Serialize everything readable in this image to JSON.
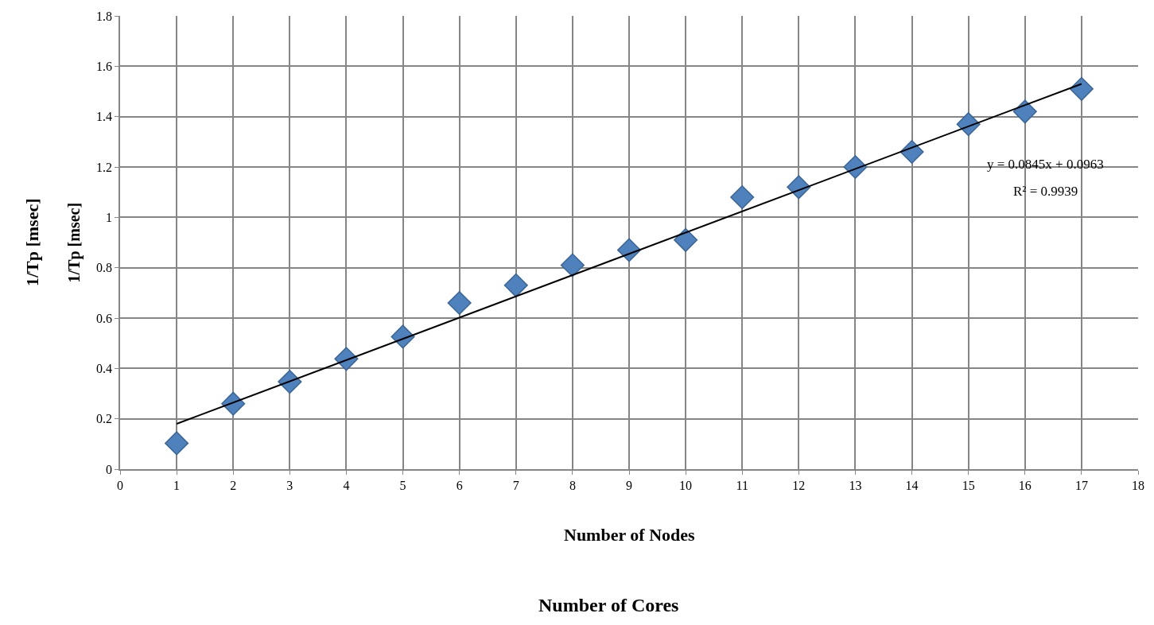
{
  "chart_data": {
    "type": "scatter",
    "xlabel": "Number of Nodes",
    "ylabel": "1/Tp [msec]",
    "x": [
      1,
      2,
      3,
      4,
      5,
      6,
      7,
      8,
      9,
      10,
      11,
      12,
      13,
      14,
      15,
      16,
      17
    ],
    "series": [
      {
        "color": "#4f81bd",
        "marker": "diamond",
        "values": [
          0.103,
          0.26,
          0.347,
          0.438,
          0.526,
          0.66,
          0.73,
          0.81,
          0.87,
          0.91,
          1.08,
          1.12,
          1.2,
          1.26,
          1.37,
          1.42,
          1.51
        ]
      },
      {
        "type": "line",
        "color": "#000000",
        "x": [
          1,
          17
        ],
        "values": [
          0.18,
          1.53
        ],
        "marker": "none",
        "line_style": "solid"
      }
    ],
    "annotations": [
      "y = 0.0845x + 0.0963",
      "R² = 0.9939",
      "1/Tp [msec]",
      "Number of Cores"
    ],
    "xlim": [
      0,
      18
    ],
    "xticks": [
      0,
      1,
      2,
      3,
      4,
      5,
      6,
      7,
      8,
      9,
      10,
      11,
      12,
      13,
      14,
      15,
      16,
      17,
      18
    ],
    "ylim": [
      0,
      1.8
    ],
    "yticks": [
      0,
      0.2,
      0.4,
      0.6,
      0.8,
      1,
      1.2,
      1.4,
      1.6,
      1.8
    ],
    "grid": true
  }
}
